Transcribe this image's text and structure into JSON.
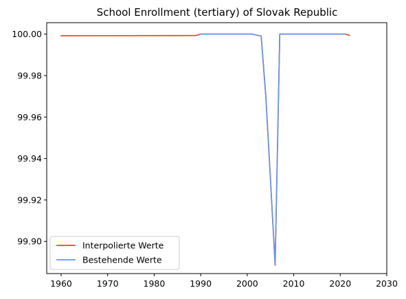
{
  "chart_data": {
    "type": "line",
    "title": "School Enrollment (tertiary) of Slovak Republic",
    "xlabel": "",
    "ylabel": "",
    "xlim": [
      1956.9,
      2030
    ],
    "ylim": [
      99.8845,
      100.0055
    ],
    "x_ticks": [
      1960,
      1970,
      1980,
      1990,
      2000,
      2010,
      2020,
      2030
    ],
    "y_ticks": [
      99.9,
      99.92,
      99.94,
      99.96,
      99.98,
      100.0
    ],
    "y_tick_labels": [
      "99.90",
      "99.92",
      "99.94",
      "99.96",
      "99.98",
      "100.00"
    ],
    "grid": false,
    "legend_position": "lower-left",
    "series": [
      {
        "name": "Interpolierte Werte",
        "color": "#ff4500",
        "x": [
          1960,
          1989,
          1990,
          2001,
          2002,
          2003,
          2004,
          2005,
          2006,
          2007,
          2021,
          2022
        ],
        "y": [
          99.9992,
          99.9993,
          100.0,
          100.0,
          99.9995,
          99.9991,
          99.97,
          99.93,
          99.8885,
          100.0,
          100.0,
          99.9994
        ]
      },
      {
        "name": "Bestehende Werte",
        "color": "#6495ed",
        "x": [
          1990,
          2001,
          2002,
          2003,
          2004,
          2005,
          2006,
          2007,
          2021
        ],
        "y": [
          100.0,
          100.0,
          99.9995,
          99.9991,
          99.97,
          99.93,
          99.8885,
          100.0,
          100.0
        ]
      }
    ]
  }
}
